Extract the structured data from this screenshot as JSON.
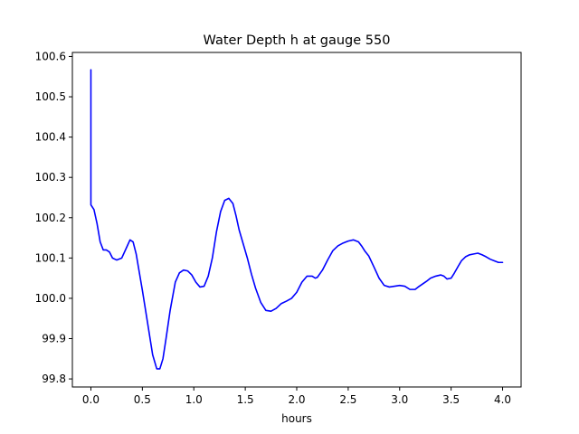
{
  "chart_data": {
    "type": "line",
    "title": "Water Depth h at gauge 550",
    "xlabel": "hours",
    "ylabel": "",
    "xlim": [
      -0.18,
      4.18
    ],
    "ylim": [
      99.78,
      100.61
    ],
    "x_ticks": [
      0.0,
      0.5,
      1.0,
      1.5,
      2.0,
      2.5,
      3.0,
      3.5,
      4.0
    ],
    "x_tick_labels": [
      "0.0",
      "0.5",
      "1.0",
      "1.5",
      "2.0",
      "2.5",
      "3.0",
      "3.5",
      "4.0"
    ],
    "y_ticks": [
      99.8,
      99.9,
      100.0,
      100.1,
      100.2,
      100.3,
      100.4,
      100.5,
      100.6
    ],
    "y_tick_labels": [
      "99.8",
      "99.9",
      "100.0",
      "100.1",
      "100.2",
      "100.3",
      "100.4",
      "100.5",
      "100.6"
    ],
    "grid": false,
    "legend": "none",
    "series": [
      {
        "color": "#0000ff",
        "x": [
          0.0,
          0.0,
          0.0,
          0.03,
          0.06,
          0.09,
          0.12,
          0.15,
          0.18,
          0.21,
          0.25,
          0.3,
          0.35,
          0.38,
          0.41,
          0.44,
          0.47,
          0.5,
          0.55,
          0.6,
          0.64,
          0.67,
          0.7,
          0.73,
          0.77,
          0.82,
          0.86,
          0.9,
          0.94,
          0.98,
          1.02,
          1.06,
          1.1,
          1.14,
          1.18,
          1.22,
          1.26,
          1.3,
          1.34,
          1.38,
          1.41,
          1.44,
          1.48,
          1.52,
          1.56,
          1.6,
          1.65,
          1.7,
          1.75,
          1.8,
          1.85,
          1.9,
          1.95,
          2.0,
          2.05,
          2.1,
          2.15,
          2.18,
          2.2,
          2.25,
          2.3,
          2.35,
          2.4,
          2.45,
          2.5,
          2.55,
          2.6,
          2.63,
          2.66,
          2.7,
          2.75,
          2.8,
          2.85,
          2.9,
          2.95,
          3.0,
          3.05,
          3.1,
          3.15,
          3.18,
          3.22,
          3.26,
          3.3,
          3.35,
          3.4,
          3.43,
          3.46,
          3.5,
          3.53,
          3.57,
          3.6,
          3.64,
          3.68,
          3.72,
          3.76,
          3.8,
          3.84,
          3.88,
          3.92,
          3.96,
          4.0
        ],
        "y": [
          100.567,
          100.232,
          100.232,
          100.22,
          100.185,
          100.14,
          100.12,
          100.12,
          100.115,
          100.1,
          100.095,
          100.1,
          100.128,
          100.145,
          100.14,
          100.11,
          100.065,
          100.02,
          99.94,
          99.86,
          99.825,
          99.825,
          99.85,
          99.9,
          99.97,
          100.04,
          100.063,
          100.07,
          100.068,
          100.058,
          100.04,
          100.028,
          100.03,
          100.055,
          100.1,
          100.165,
          100.215,
          100.243,
          100.248,
          100.235,
          100.205,
          100.17,
          100.135,
          100.1,
          100.06,
          100.025,
          99.99,
          99.97,
          99.968,
          99.975,
          99.987,
          99.993,
          100.0,
          100.015,
          100.04,
          100.055,
          100.055,
          100.05,
          100.052,
          100.07,
          100.095,
          100.118,
          100.13,
          100.137,
          100.142,
          100.145,
          100.14,
          100.13,
          100.118,
          100.105,
          100.078,
          100.05,
          100.032,
          100.028,
          100.03,
          100.032,
          100.03,
          100.022,
          100.022,
          100.028,
          100.035,
          100.042,
          100.05,
          100.055,
          100.058,
          100.055,
          100.048,
          100.05,
          100.062,
          100.08,
          100.093,
          100.103,
          100.108,
          100.11,
          100.112,
          100.108,
          100.103,
          100.097,
          100.093,
          100.089,
          100.089
        ]
      }
    ]
  }
}
